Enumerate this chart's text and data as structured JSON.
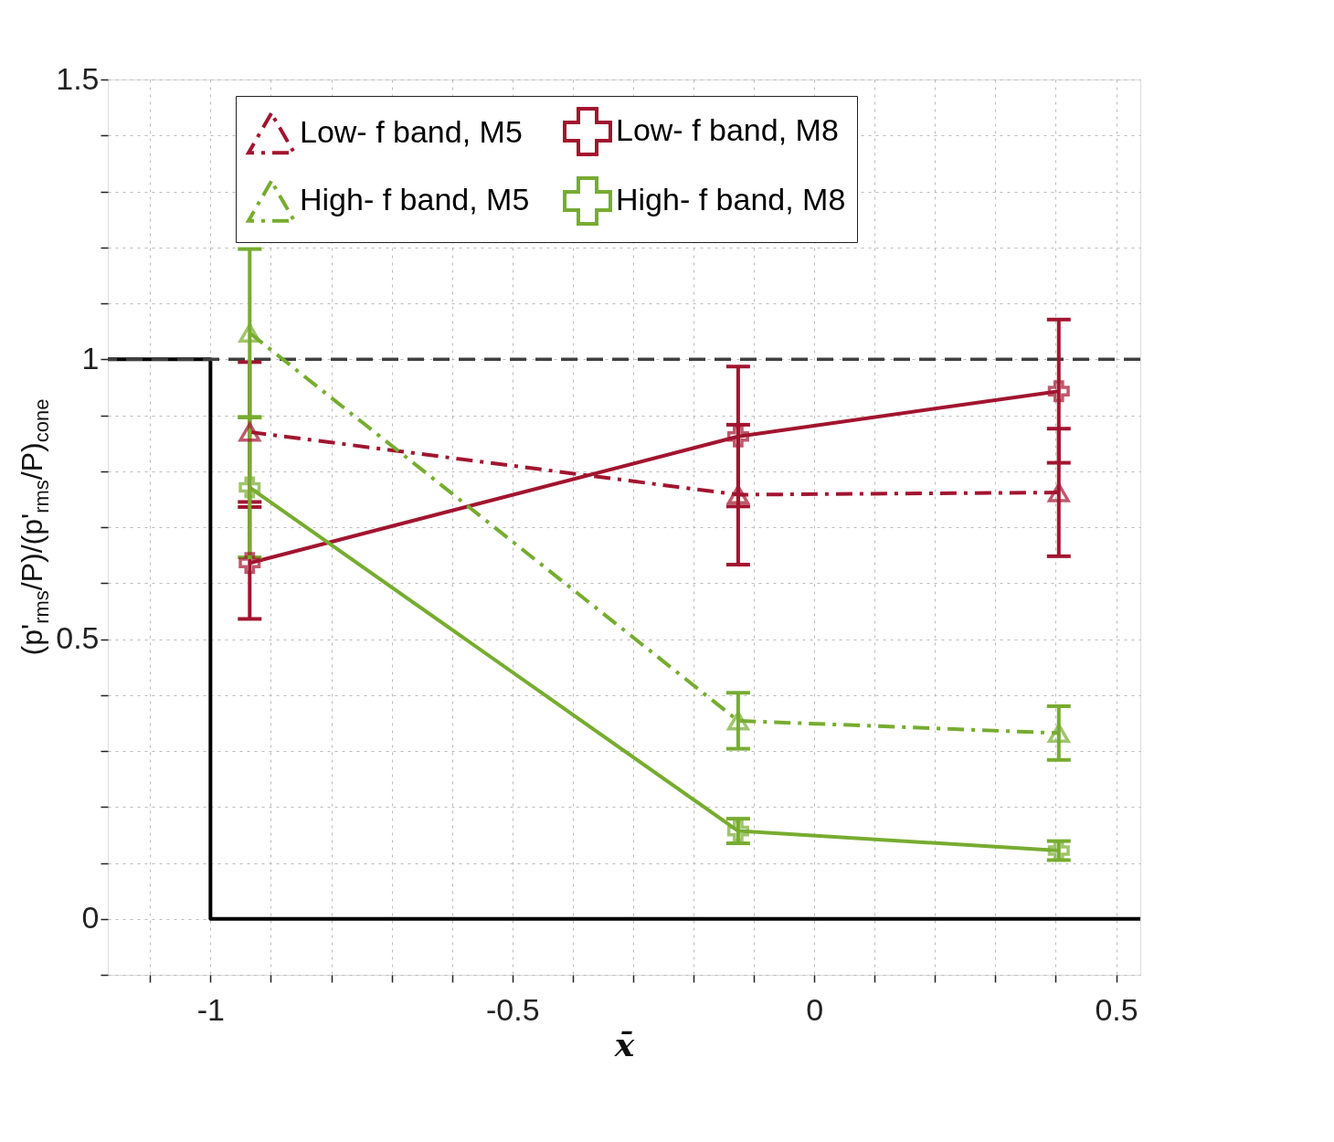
{
  "chart_data": {
    "type": "line",
    "xlabel": "x̄",
    "ylabel": "(p'$_{rms}$/P)/(p'$_{rms}$/P)$_{cone}$",
    "xlim": [
      -1.17,
      0.54
    ],
    "ylim": [
      -0.1,
      1.5
    ],
    "xticks": [
      {
        "value": -1.1,
        "label": null
      },
      -1,
      {
        "value": -0.9,
        "label": null
      },
      {
        "value": -0.8,
        "label": null
      },
      {
        "value": -0.7,
        "label": null
      },
      {
        "value": -0.6,
        "label": null
      },
      -0.5,
      {
        "value": -0.4,
        "label": null
      },
      {
        "value": -0.3,
        "label": null
      },
      {
        "value": -0.2,
        "label": null
      },
      {
        "value": -0.1,
        "label": null
      },
      0,
      {
        "value": 0.1,
        "label": null
      },
      {
        "value": 0.2,
        "label": null
      },
      {
        "value": 0.3,
        "label": null
      },
      {
        "value": 0.4,
        "label": null
      },
      0.5
    ],
    "yticks": [
      {
        "value": -0.1,
        "label": null
      },
      0,
      {
        "value": 0.1,
        "label": null
      },
      {
        "value": 0.2,
        "label": null
      },
      {
        "value": 0.3,
        "label": null
      },
      {
        "value": 0.4,
        "label": null
      },
      0.5,
      {
        "value": 0.6,
        "label": null
      },
      {
        "value": 0.7,
        "label": null
      },
      {
        "value": 0.8,
        "label": null
      },
      {
        "value": 0.9,
        "label": null
      },
      1,
      {
        "value": 1.1,
        "label": null
      },
      {
        "value": 1.2,
        "label": null
      },
      {
        "value": 1.3,
        "label": null
      },
      {
        "value": 1.4,
        "label": null
      },
      1.5
    ],
    "grid": true,
    "legend": "top",
    "series": [
      {
        "name": "Low- f band, M5",
        "color": "#a2142f",
        "marker": "triangle",
        "line_style": "dashdot",
        "x": [
          -0.935,
          -0.126,
          0.405
        ],
        "values": [
          0.87,
          0.758,
          0.762
        ],
        "errors": [
          0.125,
          0.125,
          0.114
        ]
      },
      {
        "name": "Low- f band, M8",
        "color": "#a2142f",
        "marker": "cross",
        "line_style": "solid",
        "x": [
          -0.935,
          -0.126,
          0.405
        ],
        "values": [
          0.636,
          0.862,
          0.943
        ],
        "errors": [
          0.1,
          0.125,
          0.128
        ]
      },
      {
        "name": "High- f band, M5",
        "color": "#77ac30",
        "marker": "triangle",
        "line_style": "dashdot",
        "x": [
          -0.935,
          -0.126,
          0.405
        ],
        "values": [
          1.047,
          0.354,
          0.332
        ],
        "errors": [
          0.15,
          0.05,
          0.048
        ]
      },
      {
        "name": "High- f band, M8",
        "color": "#77ac30",
        "marker": "cross",
        "line_style": "solid",
        "x": [
          -0.935,
          -0.126,
          0.405
        ],
        "values": [
          0.771,
          0.157,
          0.122
        ],
        "errors": [
          0.125,
          0.022,
          0.017
        ]
      },
      {
        "color": "#000000",
        "line_style": "solid",
        "x": [
          -1.17,
          -1,
          -1,
          0.54
        ],
        "values": [
          1,
          1,
          0,
          0
        ]
      }
    ],
    "ref_lines": [
      {
        "axis": "y",
        "value": 1,
        "color": "#404040",
        "line_style": "dashed"
      }
    ]
  }
}
